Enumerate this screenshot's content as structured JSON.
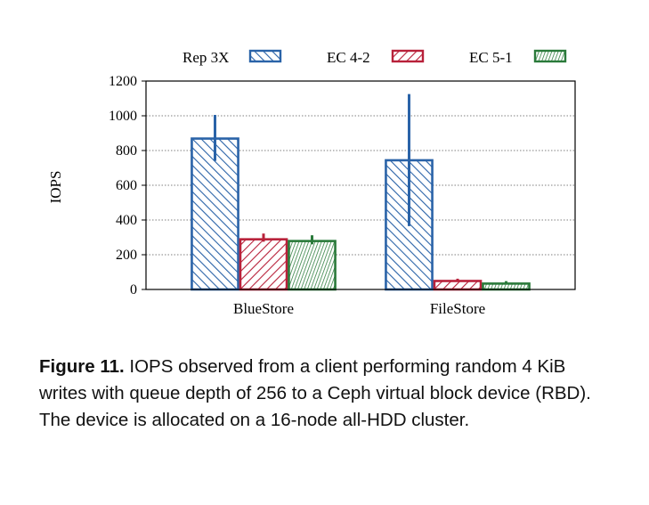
{
  "chart_data": {
    "type": "bar",
    "categories": [
      "BlueStore",
      "FileStore"
    ],
    "series": [
      {
        "name": "Rep 3X",
        "values": [
          875,
          750
        ],
        "error": [
          [
            740,
            1005
          ],
          [
            365,
            1125
          ]
        ],
        "color": "#2a63a8",
        "pattern": "diagonal-back"
      },
      {
        "name": "EC 4-2",
        "values": [
          295,
          55
        ],
        "error": [
          [
            275,
            322
          ],
          [
            45,
            62
          ]
        ],
        "color": "#b8213a",
        "pattern": "diagonal-forward"
      },
      {
        "name": "EC 5-1",
        "values": [
          285,
          40
        ],
        "error": [
          [
            260,
            312
          ],
          [
            33,
            48
          ]
        ],
        "color": "#2a7a3a",
        "pattern": "vertical-dense"
      }
    ],
    "ylabel": "IOPS",
    "xlabel": "",
    "title": "",
    "ylim": [
      0,
      1200
    ],
    "yticks": [
      "0",
      "200",
      "400",
      "600",
      "800",
      "1000",
      "1200"
    ],
    "grid": "horizontal-dotted",
    "legend_position": "top"
  },
  "caption": {
    "label": "Figure 11.",
    "text": " IOPS observed from a client performing random 4 KiB writes with queue depth of 256 to a Ceph virtual block device (RBD). The device is allocated on a 16-node all-HDD cluster."
  }
}
